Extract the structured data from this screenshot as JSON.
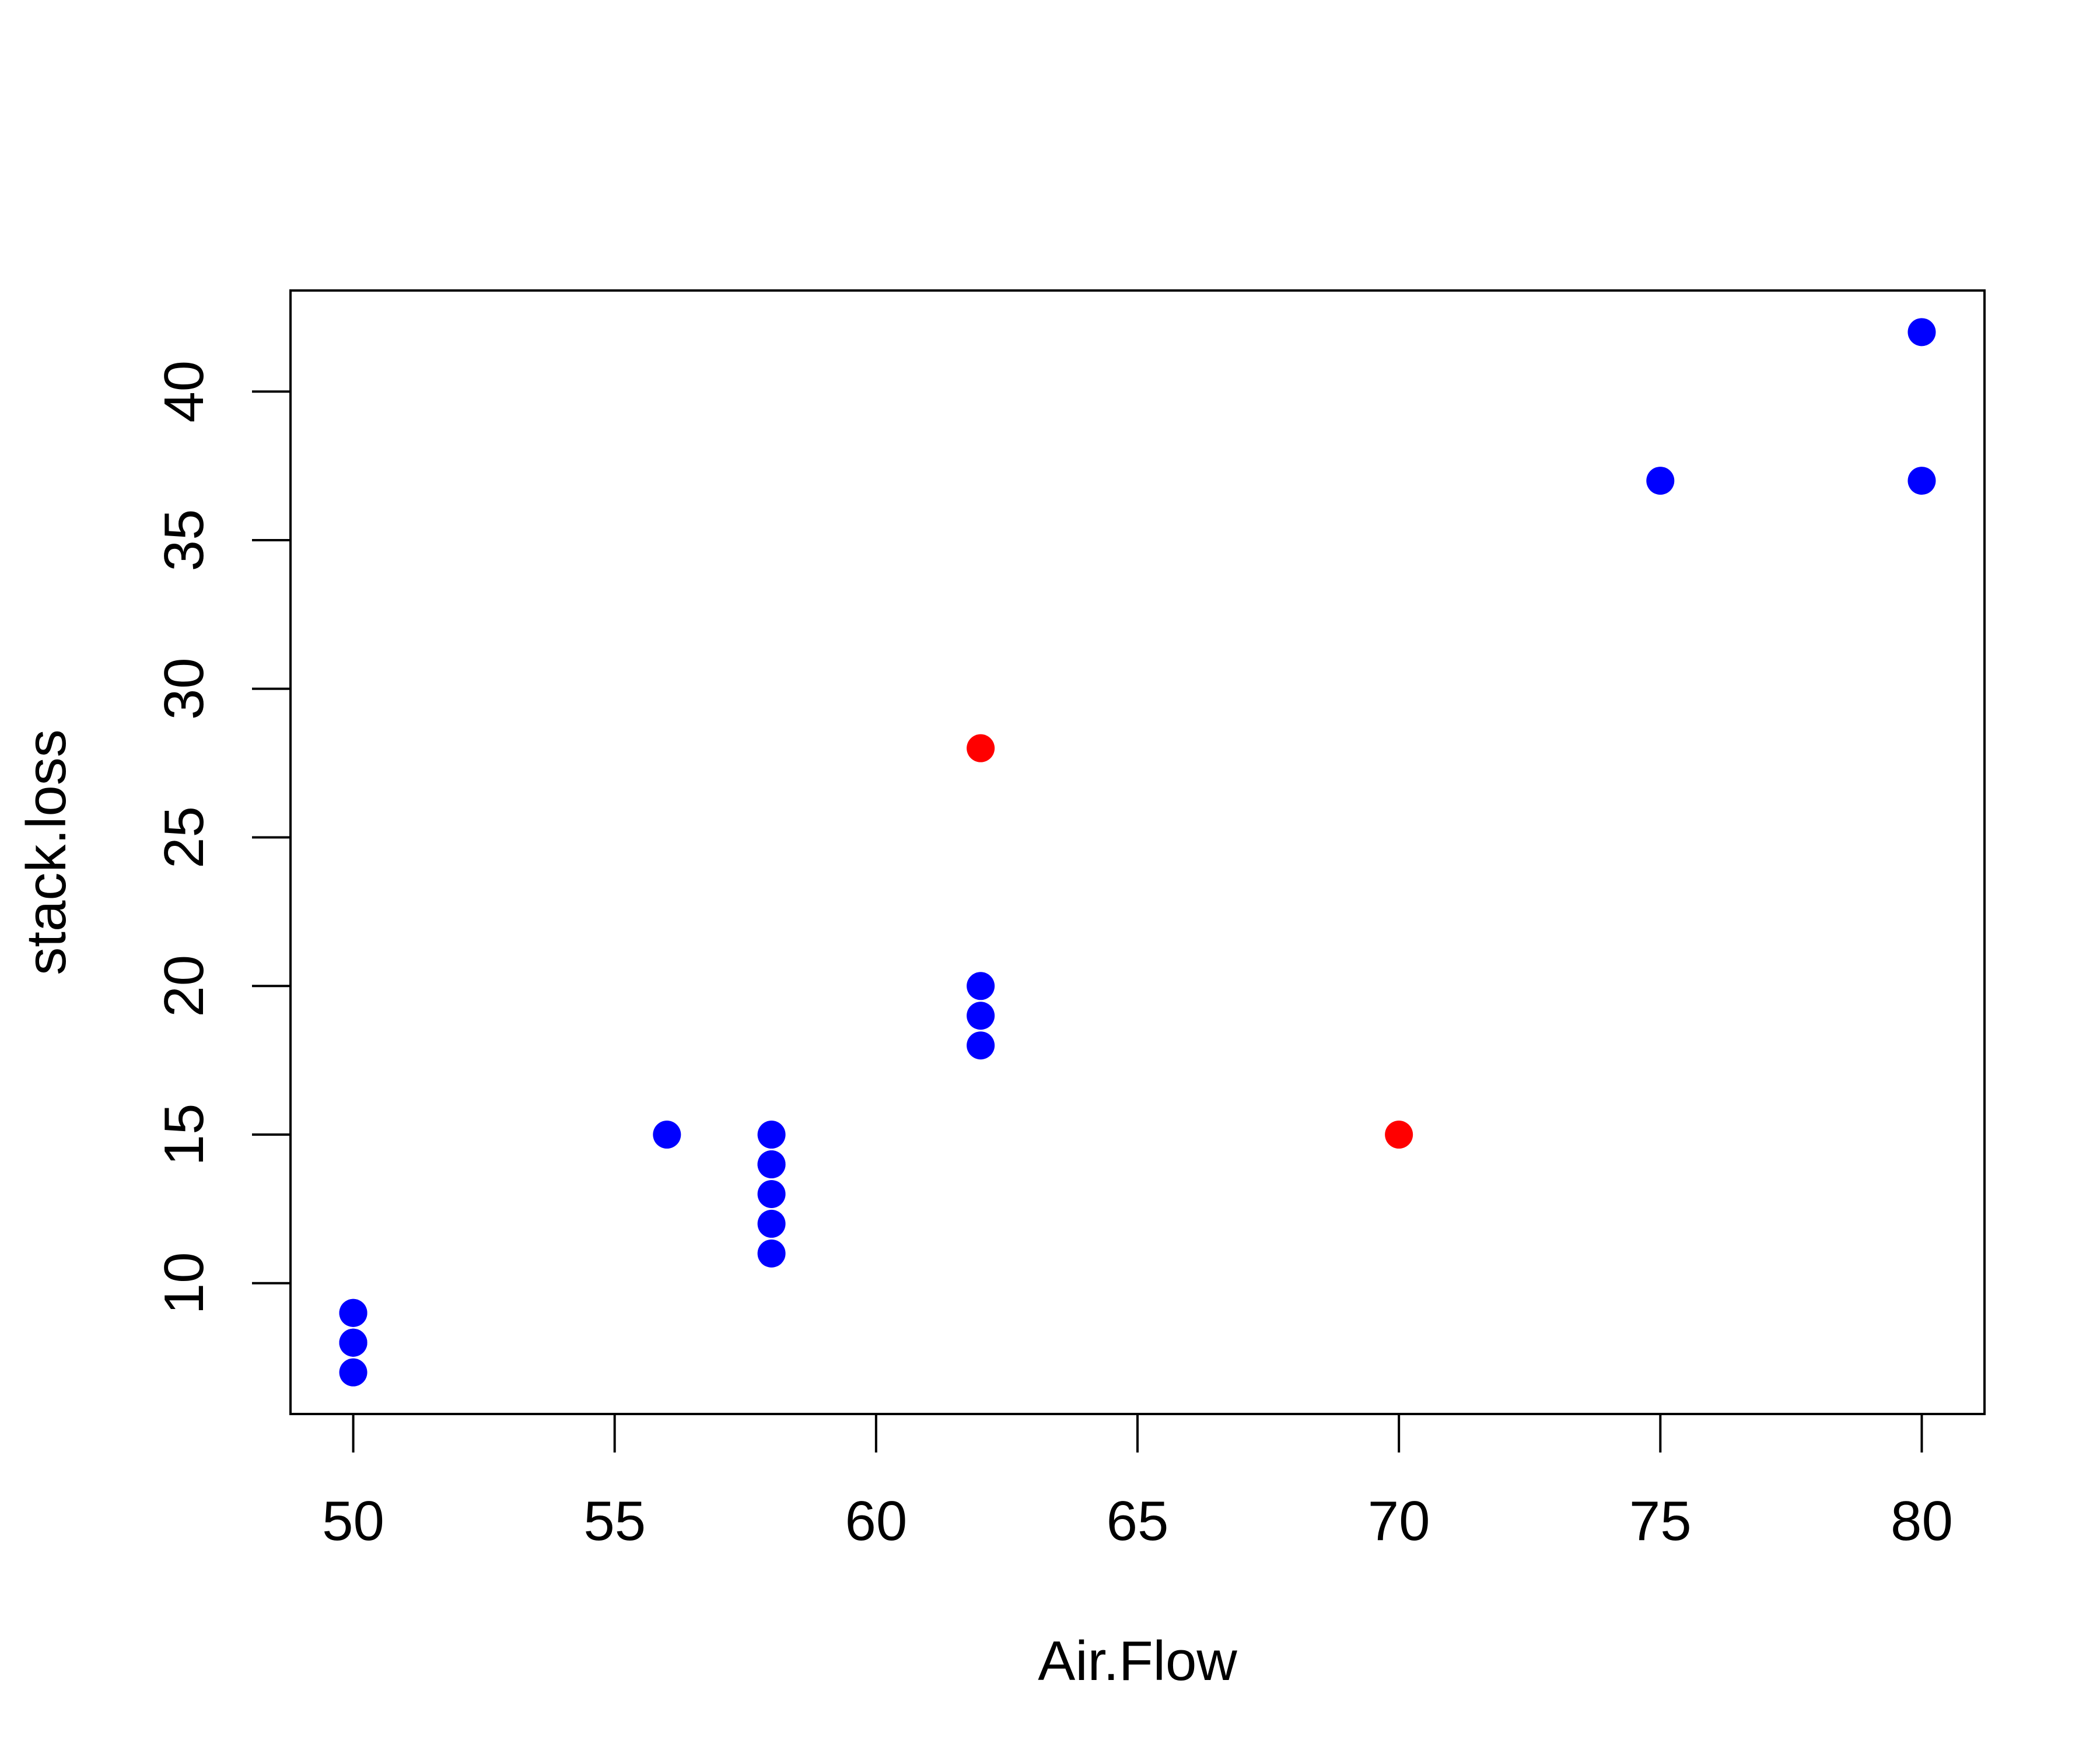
{
  "chart_data": {
    "type": "scatter",
    "title": "",
    "xlabel": "Air.Flow",
    "ylabel": "stack.loss",
    "xlim": [
      48.8,
      81.2
    ],
    "ylim": [
      5.6,
      43.4
    ],
    "xticks": [
      50,
      55,
      60,
      65,
      70,
      75,
      80
    ],
    "yticks": [
      10,
      15,
      20,
      25,
      30,
      35,
      40
    ],
    "grid": false,
    "legend": "none",
    "series": [
      {
        "color": "#0000ff",
        "points": [
          {
            "x": 80,
            "y": 42
          },
          {
            "x": 80,
            "y": 37
          },
          {
            "x": 75,
            "y": 37
          },
          {
            "x": 62,
            "y": 18
          },
          {
            "x": 62,
            "y": 20
          },
          {
            "x": 62,
            "y": 19
          },
          {
            "x": 58,
            "y": 15
          },
          {
            "x": 58,
            "y": 14
          },
          {
            "x": 58,
            "y": 14
          },
          {
            "x": 58,
            "y": 13
          },
          {
            "x": 58,
            "y": 11
          },
          {
            "x": 58,
            "y": 12
          },
          {
            "x": 50,
            "y": 8
          },
          {
            "x": 50,
            "y": 7
          },
          {
            "x": 50,
            "y": 8
          },
          {
            "x": 50,
            "y": 8
          },
          {
            "x": 50,
            "y": 9
          },
          {
            "x": 50,
            "y": 9
          },
          {
            "x": 56,
            "y": 15
          }
        ]
      },
      {
        "color": "#ff0000",
        "points": [
          {
            "x": 62,
            "y": 28
          },
          {
            "x": 70,
            "y": 15
          }
        ]
      }
    ]
  }
}
